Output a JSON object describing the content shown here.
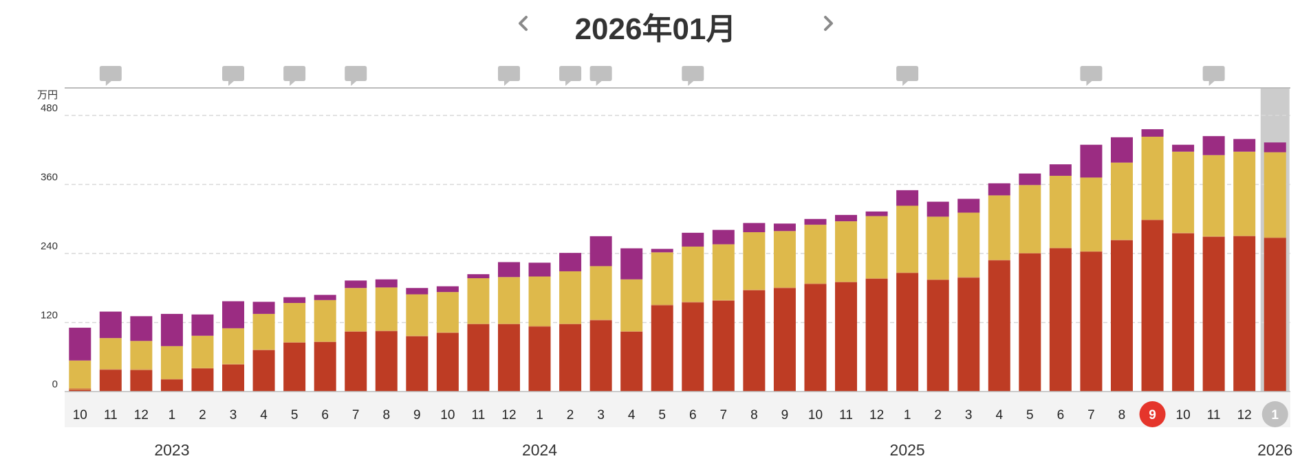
{
  "header": {
    "title": "2026年01月",
    "prev_icon": "chevron-left-icon",
    "next_icon": "chevron-right-icon"
  },
  "colors": {
    "bottom": "#be3c24",
    "thin": "#d9914e",
    "middle": "#deb94b",
    "top": "#9b2c82",
    "grid": "#d8d8d8",
    "axis_band": "#f3f3f3",
    "selected_column": "#cccccc",
    "marker_red": "#e5352b",
    "marker_gray": "#c0c0c0",
    "comment_icon": "#c0c0c0"
  },
  "chart_data": {
    "type": "bar",
    "stacked": true,
    "unit": "万円",
    "ylim": [
      0,
      480
    ],
    "yticks": [
      0,
      120,
      240,
      360,
      480
    ],
    "grid": true,
    "categories": [
      "10",
      "11",
      "12",
      "1",
      "2",
      "3",
      "4",
      "5",
      "6",
      "7",
      "8",
      "9",
      "10",
      "11",
      "12",
      "1",
      "2",
      "3",
      "4",
      "5",
      "6",
      "7",
      "8",
      "9",
      "10",
      "11",
      "12",
      "1",
      "2",
      "3",
      "4",
      "5",
      "6",
      "7",
      "8",
      "9",
      "10",
      "11",
      "12",
      "1"
    ],
    "year_labels": [
      {
        "label": "2023",
        "index": 3
      },
      {
        "label": "2024",
        "index": 15
      },
      {
        "label": "2025",
        "index": 27
      },
      {
        "label": "2026",
        "index": 39
      }
    ],
    "highlighted": [
      {
        "index": 35,
        "style": "red"
      },
      {
        "index": 39,
        "style": "gray-selected"
      }
    ],
    "comment_indices": [
      1,
      5,
      7,
      9,
      14,
      16,
      17,
      20,
      27,
      33,
      37
    ],
    "series": [
      {
        "values": [
          3,
          38,
          37,
          21,
          40,
          47,
          72,
          85,
          86,
          104,
          105,
          96,
          102,
          117,
          117,
          113,
          117,
          124,
          104,
          150,
          155,
          158,
          176,
          180,
          187,
          190,
          196,
          206,
          194,
          198,
          228,
          240,
          249,
          243,
          263,
          298,
          275,
          269,
          270,
          267
        ]
      },
      {
        "values": [
          3,
          1,
          2,
          1,
          1,
          1,
          1,
          1,
          1,
          1,
          1,
          1,
          1,
          1,
          1,
          1,
          1,
          1,
          1,
          1,
          1,
          1,
          1,
          1,
          1,
          1,
          1,
          1,
          1,
          1,
          1,
          1,
          1,
          1,
          1,
          1,
          1,
          1,
          1,
          1
        ]
      },
      {
        "values": [
          48,
          54,
          49,
          57,
          56,
          62,
          62,
          68,
          72,
          75,
          75,
          72,
          70,
          79,
          81,
          86,
          91,
          93,
          90,
          91,
          96,
          97,
          100,
          98,
          102,
          105,
          108,
          116,
          109,
          112,
          112,
          118,
          125,
          128,
          134,
          144,
          141,
          141,
          146,
          148
        ]
      },
      {
        "values": [
          57,
          46,
          43,
          56,
          37,
          47,
          21,
          10,
          9,
          13,
          14,
          11,
          10,
          7,
          26,
          24,
          32,
          52,
          54,
          6,
          24,
          25,
          16,
          13,
          10,
          11,
          8,
          27,
          26,
          24,
          21,
          20,
          20,
          57,
          44,
          13,
          12,
          33,
          22,
          17
        ]
      }
    ]
  }
}
